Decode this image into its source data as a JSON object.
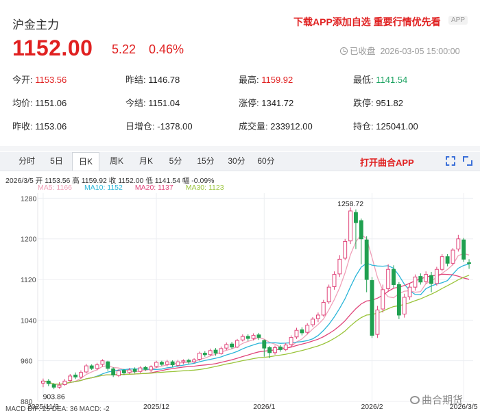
{
  "header": {
    "title": "沪金主力",
    "promo": "下载APP添加自选 重要行情优先看",
    "app_badge": "APP",
    "price": "1152.00",
    "change": "5.22",
    "change_pct": "0.46%",
    "status": "已收盘",
    "datetime": "2026-03-05 15:00:00"
  },
  "stats": [
    {
      "label": "今开:",
      "value": "1153.56",
      "tone": "up"
    },
    {
      "label": "昨结:",
      "value": "1146.78",
      "tone": ""
    },
    {
      "label": "最高:",
      "value": "1159.92",
      "tone": "up"
    },
    {
      "label": "最低:",
      "value": "1141.54",
      "tone": "down"
    },
    {
      "label": "均价:",
      "value": "1151.06",
      "tone": ""
    },
    {
      "label": "今结:",
      "value": "1151.04",
      "tone": ""
    },
    {
      "label": "涨停:",
      "value": "1341.72",
      "tone": ""
    },
    {
      "label": "跌停:",
      "value": "951.82",
      "tone": ""
    },
    {
      "label": "昨收:",
      "value": "1153.06",
      "tone": ""
    },
    {
      "label": "日增仓:",
      "value": "-1378.00",
      "tone": ""
    },
    {
      "label": "成交量:",
      "value": "233912.00",
      "tone": ""
    },
    {
      "label": "持仓:",
      "value": "125041.00",
      "tone": ""
    }
  ],
  "tabs": [
    "分时",
    "5日",
    "日K",
    "周K",
    "月K",
    "5分",
    "15分",
    "30分",
    "60分"
  ],
  "active_tab": "日K",
  "open_app": "打开曲合APP",
  "ohlc_line": "2026/3/5  开 1153.56  高 1159.92  收 1152.00  低 1141.54  幅 -0.09%",
  "ma_legend": [
    {
      "text": "MA5: 1166",
      "color": "#f0a0b8"
    },
    {
      "text": "MA10: 1152",
      "color": "#2ab5d8"
    },
    {
      "text": "MA20: 1137",
      "color": "#e0457a"
    },
    {
      "text": "MA30: 1123",
      "color": "#9ac43a"
    }
  ],
  "chart_data": {
    "type": "candlestick",
    "y_ticks": [
      880,
      960,
      1040,
      1120,
      1200,
      1280
    ],
    "ylim": [
      880,
      1290
    ],
    "x_ticks": [
      {
        "label": "2025/11/3",
        "index": 0
      },
      {
        "label": "2025/12",
        "index": 21
      },
      {
        "label": "2026/1",
        "index": 41
      },
      {
        "label": "2026/2",
        "index": 61
      },
      {
        "label": "2026/3/5",
        "index": 78
      }
    ],
    "annotations": [
      {
        "text": "1258.72",
        "index": 57,
        "value": 1258.72
      },
      {
        "text": "903.86",
        "index": 2,
        "value": 903.86
      }
    ],
    "candles": [
      [
        916,
        920,
        908,
        925
      ],
      [
        920,
        915,
        910,
        924
      ],
      [
        913,
        908,
        904,
        916
      ],
      [
        908,
        912,
        905,
        918
      ],
      [
        913,
        920,
        911,
        924
      ],
      [
        921,
        930,
        918,
        934
      ],
      [
        932,
        928,
        924,
        937
      ],
      [
        928,
        937,
        925,
        941
      ],
      [
        938,
        950,
        935,
        954
      ],
      [
        950,
        945,
        942,
        953
      ],
      [
        945,
        952,
        941,
        956
      ],
      [
        953,
        960,
        948,
        963
      ],
      [
        958,
        945,
        940,
        960
      ],
      [
        944,
        932,
        928,
        947
      ],
      [
        931,
        940,
        928,
        943
      ],
      [
        941,
        936,
        932,
        944
      ],
      [
        937,
        942,
        934,
        946
      ],
      [
        943,
        939,
        935,
        947
      ],
      [
        939,
        946,
        936,
        949
      ],
      [
        947,
        943,
        940,
        950
      ],
      [
        942,
        948,
        938,
        951
      ],
      [
        949,
        957,
        946,
        960
      ],
      [
        957,
        953,
        950,
        960
      ],
      [
        953,
        958,
        949,
        962
      ],
      [
        958,
        952,
        948,
        961
      ],
      [
        951,
        958,
        948,
        962
      ],
      [
        958,
        960,
        953,
        963
      ],
      [
        961,
        958,
        954,
        964
      ],
      [
        958,
        962,
        955,
        965
      ],
      [
        963,
        975,
        960,
        978
      ],
      [
        975,
        972,
        968,
        979
      ],
      [
        972,
        980,
        969,
        984
      ],
      [
        981,
        975,
        970,
        985
      ],
      [
        974,
        984,
        972,
        988
      ],
      [
        985,
        992,
        981,
        996
      ],
      [
        993,
        987,
        983,
        997
      ],
      [
        987,
        1000,
        985,
        1003
      ],
      [
        1001,
        1008,
        998,
        1012
      ],
      [
        1008,
        1004,
        999,
        1012
      ],
      [
        1004,
        1010,
        1000,
        1014
      ],
      [
        1011,
        1006,
        1001,
        1015
      ],
      [
        1000,
        985,
        968,
        1002
      ],
      [
        986,
        976,
        965,
        989
      ],
      [
        976,
        986,
        972,
        990
      ],
      [
        987,
        982,
        978,
        991
      ],
      [
        982,
        991,
        979,
        995
      ],
      [
        992,
        1006,
        988,
        1010
      ],
      [
        1007,
        1020,
        1003,
        1025
      ],
      [
        1021,
        1015,
        1010,
        1026
      ],
      [
        1016,
        1030,
        1012,
        1034
      ],
      [
        1031,
        1042,
        1027,
        1046
      ],
      [
        1043,
        1050,
        1036,
        1055
      ],
      [
        1050,
        1075,
        1047,
        1080
      ],
      [
        1076,
        1105,
        1072,
        1110
      ],
      [
        1106,
        1130,
        1100,
        1136
      ],
      [
        1131,
        1160,
        1125,
        1168
      ],
      [
        1162,
        1195,
        1158,
        1200
      ],
      [
        1196,
        1255,
        1190,
        1262
      ],
      [
        1252,
        1232,
        1180,
        1258
      ],
      [
        1236,
        1200,
        1150,
        1240
      ],
      [
        1198,
        1120,
        1095,
        1205
      ],
      [
        1118,
        1010,
        1005,
        1125
      ],
      [
        1012,
        1060,
        1005,
        1068
      ],
      [
        1062,
        1100,
        1055,
        1110
      ],
      [
        1102,
        1140,
        1098,
        1150
      ],
      [
        1140,
        1110,
        1104,
        1148
      ],
      [
        1110,
        1050,
        1042,
        1115
      ],
      [
        1052,
        1085,
        1045,
        1092
      ],
      [
        1086,
        1105,
        1080,
        1112
      ],
      [
        1105,
        1125,
        1098,
        1130
      ],
      [
        1126,
        1115,
        1110,
        1132
      ],
      [
        1116,
        1130,
        1112,
        1136
      ],
      [
        1128,
        1112,
        1095,
        1135
      ],
      [
        1112,
        1140,
        1108,
        1145
      ],
      [
        1140,
        1165,
        1136,
        1170
      ],
      [
        1165,
        1152,
        1146,
        1170
      ],
      [
        1152,
        1178,
        1148,
        1182
      ],
      [
        1180,
        1200,
        1175,
        1208
      ],
      [
        1198,
        1160,
        1155,
        1202
      ],
      [
        1153,
        1152,
        1141,
        1160
      ]
    ]
  },
  "watermark": "曲合期货",
  "bottom_text": "MACD  DIF: 25   DEA: 36   MACD: -2"
}
